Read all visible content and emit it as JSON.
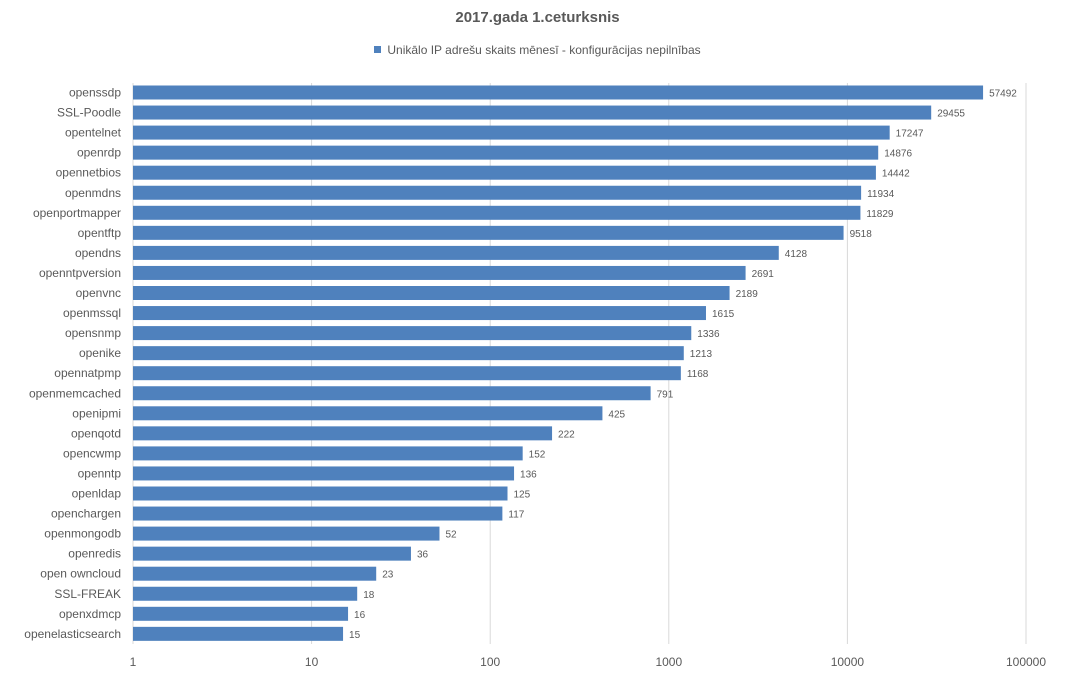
{
  "chart_data": {
    "type": "bar",
    "orientation": "horizontal",
    "title": "2017.gada 1.ceturksnis",
    "legend_position": "top",
    "series": [
      {
        "name": "Unikālo IP adrešu skaits mēnesī  -  konfigurācijas nepilnības",
        "color": "#4f81bd",
        "values": [
          57492,
          29455,
          17247,
          14876,
          14442,
          11934,
          11829,
          9518,
          4128,
          2691,
          2189,
          1615,
          1336,
          1213,
          1168,
          791,
          425,
          222,
          152,
          136,
          125,
          117,
          52,
          36,
          23,
          18,
          16,
          15
        ]
      }
    ],
    "categories": [
      "openssdp",
      "SSL-Poodle",
      "opentelnet",
      "openrdp",
      "opennetbios",
      "openmdns",
      "openportmapper",
      "opentftp",
      "opendns",
      "openntpversion",
      "openvnc",
      "openmssql",
      "opensnmp",
      "openike",
      "opennatpmp",
      "openmemcached",
      "openipmi",
      "openqotd",
      "opencwmp",
      "openntp",
      "openldap",
      "openchargen",
      "openmongodb",
      "openredis",
      "open owncloud",
      "SSL-FREAK",
      "openxdmcp",
      "openelasticsearch"
    ],
    "data_labels": [
      "57492",
      "29455",
      "17247",
      "14876",
      "14442",
      "11934",
      "11829",
      "9518",
      "4128",
      "2691",
      "2189",
      "1615",
      "1336",
      "1213",
      "1168",
      "791",
      "425",
      "222",
      "152",
      "136",
      "125",
      "117",
      "52",
      "36",
      "23",
      "18",
      "16",
      "15"
    ],
    "xscale": "log",
    "xlim": [
      1,
      100000
    ],
    "x_ticks": [
      1,
      10,
      100,
      1000,
      10000,
      100000
    ],
    "x_tick_labels": [
      "1",
      "10",
      "100",
      "1000",
      "10000",
      "100000"
    ],
    "grid": true
  }
}
